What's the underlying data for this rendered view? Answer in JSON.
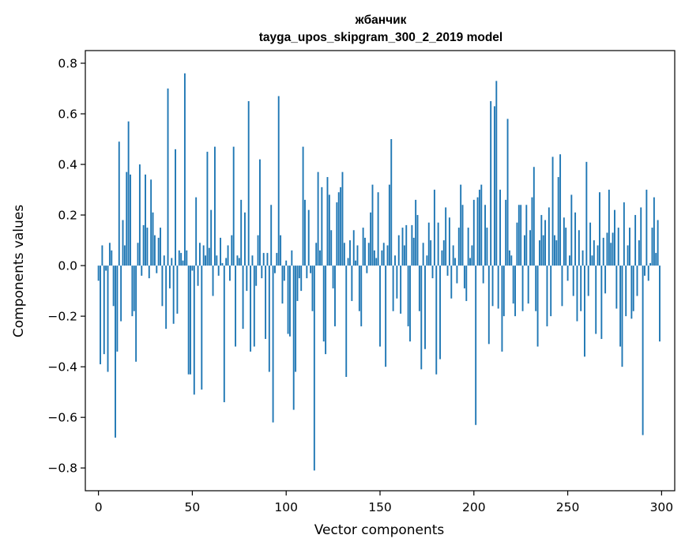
{
  "chart_data": {
    "type": "bar",
    "title": "жбанчик",
    "subtitle": "tayga_upos_skipgram_300_2_2019 model",
    "xlabel": "Vector components",
    "ylabel": "Components values",
    "xlim": [
      -7,
      307
    ],
    "ylim": [
      -0.89,
      0.85
    ],
    "xticks": [
      0,
      50,
      100,
      150,
      200,
      250,
      300
    ],
    "xtick_labels": [
      "0",
      "50",
      "100",
      "150",
      "200",
      "250",
      "300"
    ],
    "yticks": [
      -0.8,
      -0.6,
      -0.4,
      -0.2,
      0.0,
      0.2,
      0.4,
      0.6,
      0.8
    ],
    "ytick_labels": [
      "−0.8",
      "−0.6",
      "−0.4",
      "−0.2",
      "0.0",
      "0.2",
      "0.4",
      "0.6",
      "0.8"
    ],
    "grid": false,
    "legend": "none",
    "bar_color": "#1f77b4",
    "x": [
      0,
      1,
      2,
      3,
      4,
      5,
      6,
      7,
      8,
      9,
      10,
      11,
      12,
      13,
      14,
      15,
      16,
      17,
      18,
      19,
      20,
      21,
      22,
      23,
      24,
      25,
      26,
      27,
      28,
      29,
      30,
      31,
      32,
      33,
      34,
      35,
      36,
      37,
      38,
      39,
      40,
      41,
      42,
      43,
      44,
      45,
      46,
      47,
      48,
      49,
      50,
      51,
      52,
      53,
      54,
      55,
      56,
      57,
      58,
      59,
      60,
      61,
      62,
      63,
      64,
      65,
      66,
      67,
      68,
      69,
      70,
      71,
      72,
      73,
      74,
      75,
      76,
      77,
      78,
      79,
      80,
      81,
      82,
      83,
      84,
      85,
      86,
      87,
      88,
      89,
      90,
      91,
      92,
      93,
      94,
      95,
      96,
      97,
      98,
      99,
      100,
      101,
      102,
      103,
      104,
      105,
      106,
      107,
      108,
      109,
      110,
      111,
      112,
      113,
      114,
      115,
      116,
      117,
      118,
      119,
      120,
      121,
      122,
      123,
      124,
      125,
      126,
      127,
      128,
      129,
      130,
      131,
      132,
      133,
      134,
      135,
      136,
      137,
      138,
      139,
      140,
      141,
      142,
      143,
      144,
      145,
      146,
      147,
      148,
      149,
      150,
      151,
      152,
      153,
      154,
      155,
      156,
      157,
      158,
      159,
      160,
      161,
      162,
      163,
      164,
      165,
      166,
      167,
      168,
      169,
      170,
      171,
      172,
      173,
      174,
      175,
      176,
      177,
      178,
      179,
      180,
      181,
      182,
      183,
      184,
      185,
      186,
      187,
      188,
      189,
      190,
      191,
      192,
      193,
      194,
      195,
      196,
      197,
      198,
      199,
      200,
      201,
      202,
      203,
      204,
      205,
      206,
      207,
      208,
      209,
      210,
      211,
      212,
      213,
      214,
      215,
      216,
      217,
      218,
      219,
      220,
      221,
      222,
      223,
      224,
      225,
      226,
      227,
      228,
      229,
      230,
      231,
      232,
      233,
      234,
      235,
      236,
      237,
      238,
      239,
      240,
      241,
      242,
      243,
      244,
      245,
      246,
      247,
      248,
      249,
      250,
      251,
      252,
      253,
      254,
      255,
      256,
      257,
      258,
      259,
      260,
      261,
      262,
      263,
      264,
      265,
      266,
      267,
      268,
      269,
      270,
      271,
      272,
      273,
      274,
      275,
      276,
      277,
      278,
      279,
      280,
      281,
      282,
      283,
      284,
      285,
      286,
      287,
      288,
      289,
      290,
      291,
      292,
      293,
      294,
      295,
      296,
      297,
      298,
      299
    ],
    "values": [
      -0.06,
      -0.39,
      0.08,
      -0.35,
      -0.02,
      -0.42,
      0.09,
      0.06,
      -0.16,
      -0.68,
      -0.34,
      0.49,
      -0.22,
      0.18,
      0.08,
      0.37,
      0.57,
      0.36,
      -0.2,
      -0.18,
      -0.38,
      0.09,
      0.4,
      -0.04,
      0.16,
      0.36,
      0.15,
      -0.05,
      0.34,
      0.21,
      0.12,
      -0.03,
      0.11,
      0.15,
      -0.16,
      0.04,
      -0.25,
      0.7,
      -0.09,
      0.03,
      -0.23,
      0.46,
      -0.19,
      0.06,
      0.05,
      0.02,
      0.76,
      0.06,
      -0.43,
      -0.43,
      -0.02,
      -0.51,
      0.27,
      -0.08,
      0.09,
      -0.49,
      0.08,
      0.04,
      0.45,
      0.07,
      0.22,
      -0.12,
      0.47,
      0.04,
      -0.04,
      0.11,
      0.01,
      -0.54,
      0.03,
      0.08,
      -0.06,
      0.12,
      0.47,
      -0.32,
      0.04,
      0.03,
      0.26,
      -0.25,
      0.21,
      -0.1,
      0.65,
      -0.34,
      0.04,
      -0.32,
      -0.08,
      0.12,
      0.42,
      -0.05,
      0.05,
      -0.29,
      0.05,
      -0.42,
      0.24,
      -0.62,
      -0.03,
      0.05,
      0.67,
      0.12,
      -0.15,
      -0.06,
      0.02,
      -0.27,
      -0.28,
      0.06,
      -0.57,
      -0.42,
      -0.14,
      -0.05,
      -0.1,
      0.47,
      0.26,
      -0.05,
      0.22,
      -0.03,
      -0.18,
      -0.81,
      0.09,
      0.37,
      0.06,
      0.31,
      -0.3,
      -0.35,
      0.35,
      0.28,
      0.14,
      -0.09,
      -0.24,
      0.25,
      0.29,
      0.31,
      0.37,
      0.09,
      -0.44,
      0.03,
      0.1,
      -0.14,
      0.14,
      0.02,
      0.08,
      -0.18,
      -0.24,
      0.15,
      0.11,
      -0.03,
      0.09,
      0.21,
      0.32,
      0.06,
      0.03,
      0.29,
      -0.32,
      0.06,
      0.09,
      -0.4,
      0.08,
      0.32,
      0.5,
      -0.18,
      0.04,
      -0.13,
      0.12,
      -0.19,
      0.15,
      0.08,
      0.16,
      -0.24,
      -0.3,
      0.16,
      0.11,
      0.26,
      0.2,
      -0.18,
      -0.41,
      0.09,
      -0.33,
      0.04,
      0.17,
      0.1,
      -0.05,
      0.3,
      -0.43,
      0.17,
      -0.37,
      0.06,
      0.1,
      0.23,
      -0.04,
      0.19,
      -0.13,
      0.08,
      0.03,
      -0.07,
      0.15,
      0.32,
      0.24,
      -0.09,
      -0.14,
      0.15,
      0.03,
      0.08,
      0.26,
      -0.63,
      0.27,
      0.3,
      0.32,
      -0.07,
      0.24,
      0.15,
      -0.31,
      0.65,
      -0.16,
      0.63,
      0.73,
      -0.17,
      0.3,
      -0.34,
      -0.2,
      0.26,
      0.58,
      0.06,
      0.04,
      -0.15,
      -0.2,
      0.17,
      0.24,
      0.24,
      -0.18,
      0.12,
      0.24,
      -0.15,
      0.14,
      0.27,
      0.39,
      -0.18,
      -0.32,
      0.1,
      0.2,
      0.12,
      0.18,
      -0.24,
      0.23,
      -0.2,
      0.43,
      0.12,
      0.1,
      0.35,
      0.44,
      -0.16,
      0.19,
      0.15,
      -0.06,
      0.04,
      0.28,
      -0.12,
      0.21,
      -0.22,
      0.14,
      -0.18,
      0.06,
      -0.36,
      0.41,
      -0.12,
      0.17,
      0.04,
      0.1,
      -0.27,
      0.08,
      0.29,
      -0.29,
      0.11,
      -0.11,
      0.13,
      0.3,
      0.09,
      0.13,
      0.22,
      -0.17,
      0.15,
      -0.32,
      -0.4,
      0.25,
      -0.2,
      0.08,
      0.15,
      -0.21,
      -0.18,
      0.2,
      -0.12,
      0.1,
      0.23,
      -0.67,
      -0.04,
      0.3,
      -0.06,
      0.01,
      0.15,
      0.27,
      0.05,
      0.18,
      -0.3
    ]
  }
}
